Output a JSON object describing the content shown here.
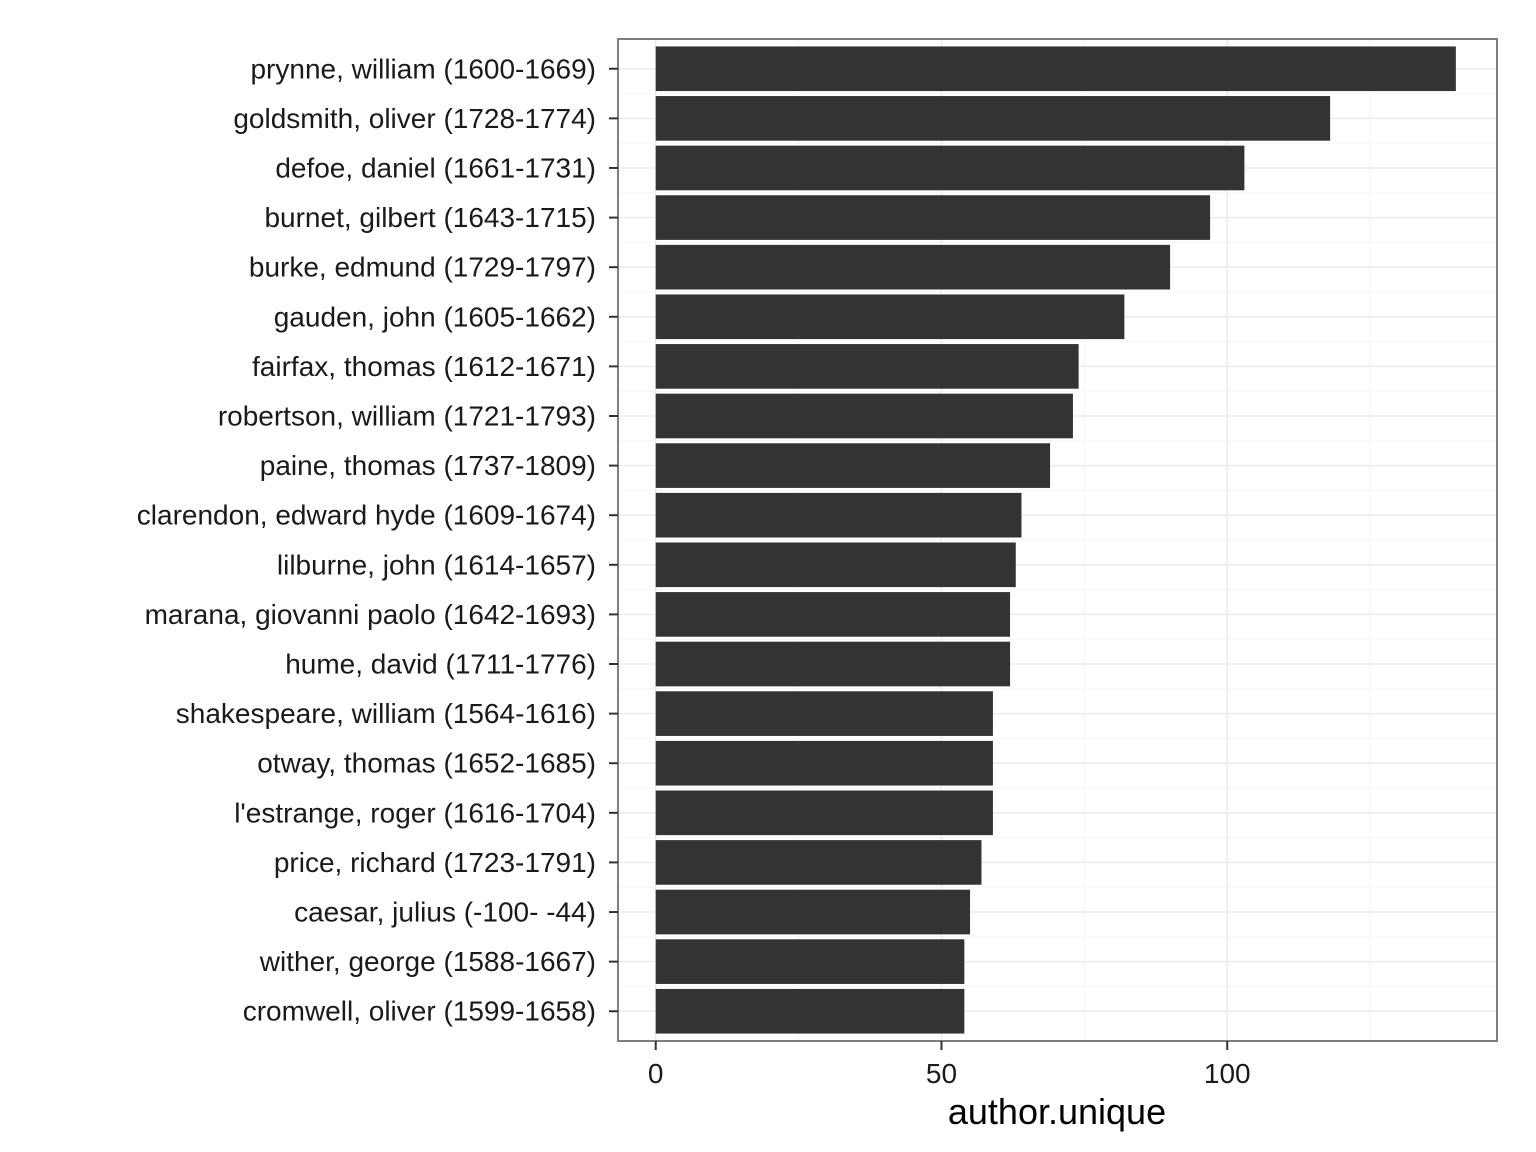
{
  "chart_data": {
    "type": "bar",
    "orientation": "horizontal",
    "title": "",
    "xlabel": "author.unique",
    "ylabel": "",
    "xlim": [
      -6.6,
      147.2
    ],
    "x_ticks": [
      0,
      50,
      100
    ],
    "x_tick_labels": [
      "0",
      "50",
      "100"
    ],
    "grid": true,
    "categories": [
      "prynne, william (1600-1669)",
      "goldsmith, oliver (1728-1774)",
      "defoe, daniel (1661-1731)",
      "burnet, gilbert (1643-1715)",
      "burke, edmund (1729-1797)",
      "gauden, john (1605-1662)",
      "fairfax, thomas (1612-1671)",
      "robertson, william (1721-1793)",
      "paine, thomas (1737-1809)",
      "clarendon, edward hyde (1609-1674)",
      "lilburne, john (1614-1657)",
      "marana, giovanni paolo (1642-1693)",
      "hume, david (1711-1776)",
      "shakespeare, william (1564-1616)",
      "otway, thomas (1652-1685)",
      "l'estrange, roger (1616-1704)",
      "price, richard (1723-1791)",
      "caesar, julius (-100- -44)",
      "wither, george (1588-1667)",
      "cromwell, oliver (1599-1658)"
    ],
    "values": [
      140,
      118,
      103,
      97,
      90,
      82,
      74,
      73,
      69,
      64,
      63,
      62,
      62,
      59,
      59,
      59,
      57,
      55,
      54,
      54
    ],
    "colors": {
      "bar": "#333333",
      "panel_border": "#7f7f7f",
      "grid_major": "#ebebeb",
      "grid_minor": "#f5f5f5",
      "tick": "#333333"
    }
  }
}
